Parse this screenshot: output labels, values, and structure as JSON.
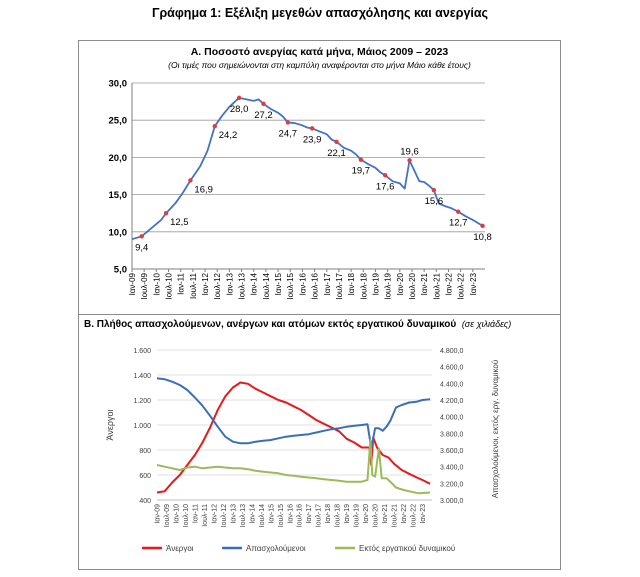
{
  "page_title": "Γράφημα 1: Εξέλιξη μεγεθών απασχόλησης και ανεργίας",
  "chart_data": [
    {
      "type": "line",
      "title": "Α. Ποσοστό ανεργίας κατά μήνα, Μάιος 2009 – 2023",
      "subtitle": "(Οι τιμές που σημειώνονται στη καμπύλη αναφέρονται στο μήνα Μάιο κάθε έτους)",
      "ylim": [
        5,
        30
      ],
      "y_ticks": [
        "5,0",
        "10,0",
        "15,0",
        "20,0",
        "25,0",
        "30,0"
      ],
      "x_ticks": [
        "Ιαν-09",
        "Ιουλ-09",
        "Ιαν-10",
        "Ιουλ-10",
        "Ιαν-11",
        "Ιουλ-11",
        "Ιαν-12",
        "Ιουλ-12",
        "Ιαν-13",
        "Ιουλ-13",
        "Ιαν-14",
        "Ιουλ-14",
        "Ιαν-15",
        "Ιουλ-15",
        "Ιαν-16",
        "Ιουλ-16",
        "Ιαν-17",
        "Ιουλ-17",
        "Ιαν-18",
        "Ιουλ-18",
        "Ιαν-19",
        "Ιουλ-19",
        "Ιαν-20",
        "Ιουλ-20",
        "Ιαν-21",
        "Ιουλ-21",
        "Ιαν-22",
        "Ιουλ-22",
        "Ιαν-23"
      ],
      "grid": true,
      "series": [
        {
          "color": "#4472c4",
          "points": [
            [
              2009.0,
              9.0
            ],
            [
              2009.4,
              9.4
            ],
            [
              2009.8,
              10.5
            ],
            [
              2010.2,
              11.6
            ],
            [
              2010.4,
              12.5
            ],
            [
              2010.8,
              13.9
            ],
            [
              2011.1,
              15.3
            ],
            [
              2011.4,
              16.9
            ],
            [
              2011.8,
              18.8
            ],
            [
              2012.1,
              20.9
            ],
            [
              2012.4,
              24.2
            ],
            [
              2012.7,
              25.6
            ],
            [
              2013.0,
              26.8
            ],
            [
              2013.2,
              27.4
            ],
            [
              2013.4,
              28.0
            ],
            [
              2013.7,
              27.8
            ],
            [
              2014.0,
              27.6
            ],
            [
              2014.2,
              27.8
            ],
            [
              2014.4,
              27.2
            ],
            [
              2014.7,
              26.5
            ],
            [
              2015.0,
              26.0
            ],
            [
              2015.2,
              25.5
            ],
            [
              2015.4,
              24.7
            ],
            [
              2015.7,
              24.6
            ],
            [
              2016.0,
              24.3
            ],
            [
              2016.2,
              24.0
            ],
            [
              2016.4,
              23.9
            ],
            [
              2016.7,
              23.5
            ],
            [
              2017.0,
              23.1
            ],
            [
              2017.2,
              22.4
            ],
            [
              2017.4,
              22.1
            ],
            [
              2017.7,
              21.3
            ],
            [
              2018.0,
              20.9
            ],
            [
              2018.2,
              20.4
            ],
            [
              2018.4,
              19.7
            ],
            [
              2018.7,
              19.1
            ],
            [
              2019.0,
              18.6
            ],
            [
              2019.2,
              18.0
            ],
            [
              2019.4,
              17.6
            ],
            [
              2019.7,
              16.8
            ],
            [
              2020.0,
              16.5
            ],
            [
              2020.2,
              15.8
            ],
            [
              2020.4,
              19.6
            ],
            [
              2020.6,
              18.2
            ],
            [
              2020.8,
              16.8
            ],
            [
              2021.0,
              16.7
            ],
            [
              2021.2,
              16.2
            ],
            [
              2021.4,
              15.6
            ],
            [
              2021.6,
              13.8
            ],
            [
              2021.9,
              13.4
            ],
            [
              2022.1,
              13.2
            ],
            [
              2022.4,
              12.7
            ],
            [
              2022.7,
              12.1
            ],
            [
              2023.0,
              11.6
            ],
            [
              2023.2,
              11.2
            ],
            [
              2023.4,
              10.8
            ]
          ],
          "labels": [
            {
              "x": 2009.4,
              "value": "9,4",
              "pos": "below"
            },
            {
              "x": 2010.4,
              "value": "12,5",
              "pos": "below-right"
            },
            {
              "x": 2011.4,
              "value": "16,9",
              "pos": "below-right"
            },
            {
              "x": 2012.4,
              "value": "24,2",
              "pos": "below-right"
            },
            {
              "x": 2013.4,
              "value": "28,0",
              "pos": "below"
            },
            {
              "x": 2014.4,
              "value": "27,2",
              "pos": "below"
            },
            {
              "x": 2015.4,
              "value": "24,7",
              "pos": "below"
            },
            {
              "x": 2016.4,
              "value": "23,9",
              "pos": "below"
            },
            {
              "x": 2017.4,
              "value": "22,1",
              "pos": "below"
            },
            {
              "x": 2018.4,
              "value": "19,7",
              "pos": "below"
            },
            {
              "x": 2019.4,
              "value": "17,6",
              "pos": "below"
            },
            {
              "x": 2020.4,
              "value": "19,6",
              "pos": "above"
            },
            {
              "x": 2021.4,
              "value": "15,6",
              "pos": "below"
            },
            {
              "x": 2022.4,
              "value": "12,7",
              "pos": "below"
            },
            {
              "x": 2023.4,
              "value": "10,8",
              "pos": "below"
            }
          ],
          "marker_color": "#e03c3c"
        }
      ]
    },
    {
      "type": "line",
      "title": "Β. Πλήθος απασχολούμενων, ανέργων και ατόμων εκτός εργατικού δυναμικού",
      "title_note": "(σε χιλιάδες)",
      "ylabel_left": "Άνεργοι",
      "ylabel_right": "Απασχολούμενοι, εκτός εργ. δυναμικού",
      "ylim_left": [
        400,
        1600
      ],
      "ylim_right": [
        3000,
        4800
      ],
      "y_ticks_left": [
        "400",
        "600",
        "800",
        "1.000",
        "1.200",
        "1.400",
        "1.600"
      ],
      "y_ticks_right": [
        "3.000,0",
        "3.200,0",
        "3.400,0",
        "3.600,0",
        "3.800,0",
        "4.000,0",
        "4.200,0",
        "4.400,0",
        "4.600,0",
        "4.800,0"
      ],
      "x_ticks": [
        "Ιαν-09",
        "Ιουλ-09",
        "Ιαν-10",
        "Ιουλ-10",
        "Ιαν-11",
        "Ιουλ-11",
        "Ιαν-12",
        "Ιουλ-12",
        "Ιαν-13",
        "Ιουλ-13",
        "Ιαν-14",
        "Ιουλ-14",
        "Ιαν-15",
        "Ιουλ-15",
        "Ιαν-16",
        "Ιουλ-16",
        "Ιαν-17",
        "Ιουλ-17",
        "Ιαν-18",
        "Ιουλ-18",
        "Ιαν-19",
        "Ιουλ-19",
        "Ιαν-20",
        "Ιουλ-20",
        "Ιαν-21",
        "Ιουλ-21",
        "Ιαν-22",
        "Ιουλ-22",
        "Ιαν-23"
      ],
      "grid": true,
      "legend_position": "bottom",
      "series": [
        {
          "name": "Άνεργοι",
          "axis": "left",
          "color": "#e8191b",
          "points": [
            [
              2009.0,
              460
            ],
            [
              2009.4,
              470
            ],
            [
              2009.8,
              540
            ],
            [
              2010.2,
              600
            ],
            [
              2010.6,
              680
            ],
            [
              2011.0,
              760
            ],
            [
              2011.4,
              860
            ],
            [
              2011.8,
              980
            ],
            [
              2012.2,
              1120
            ],
            [
              2012.6,
              1230
            ],
            [
              2013.0,
              1300
            ],
            [
              2013.4,
              1340
            ],
            [
              2013.8,
              1330
            ],
            [
              2014.2,
              1290
            ],
            [
              2014.6,
              1260
            ],
            [
              2015.0,
              1230
            ],
            [
              2015.4,
              1200
            ],
            [
              2015.8,
              1180
            ],
            [
              2016.2,
              1150
            ],
            [
              2016.6,
              1120
            ],
            [
              2017.0,
              1080
            ],
            [
              2017.4,
              1040
            ],
            [
              2017.8,
              1010
            ],
            [
              2018.2,
              980
            ],
            [
              2018.6,
              950
            ],
            [
              2019.0,
              890
            ],
            [
              2019.4,
              860
            ],
            [
              2019.8,
              820
            ],
            [
              2020.2,
              820
            ],
            [
              2020.3,
              680
            ],
            [
              2020.4,
              900
            ],
            [
              2020.6,
              820
            ],
            [
              2020.9,
              760
            ],
            [
              2021.2,
              740
            ],
            [
              2021.5,
              690
            ],
            [
              2021.9,
              640
            ],
            [
              2022.3,
              610
            ],
            [
              2022.7,
              580
            ],
            [
              2023.0,
              560
            ],
            [
              2023.4,
              530
            ]
          ]
        },
        {
          "name": "Απασχολούμενοι",
          "axis": "right",
          "color": "#3a6fb7",
          "points": [
            [
              2009.0,
              4460
            ],
            [
              2009.4,
              4450
            ],
            [
              2009.8,
              4420
            ],
            [
              2010.2,
              4380
            ],
            [
              2010.6,
              4320
            ],
            [
              2011.0,
              4230
            ],
            [
              2011.4,
              4130
            ],
            [
              2011.8,
              4010
            ],
            [
              2012.2,
              3880
            ],
            [
              2012.6,
              3760
            ],
            [
              2013.0,
              3700
            ],
            [
              2013.4,
              3680
            ],
            [
              2013.8,
              3680
            ],
            [
              2014.2,
              3700
            ],
            [
              2014.6,
              3710
            ],
            [
              2015.0,
              3720
            ],
            [
              2015.4,
              3740
            ],
            [
              2015.8,
              3760
            ],
            [
              2016.2,
              3770
            ],
            [
              2016.6,
              3780
            ],
            [
              2017.0,
              3790
            ],
            [
              2017.4,
              3810
            ],
            [
              2017.8,
              3830
            ],
            [
              2018.2,
              3850
            ],
            [
              2018.6,
              3860
            ],
            [
              2019.0,
              3880
            ],
            [
              2019.4,
              3890
            ],
            [
              2019.8,
              3900
            ],
            [
              2020.1,
              3910
            ],
            [
              2020.3,
              3620
            ],
            [
              2020.5,
              3860
            ],
            [
              2020.7,
              3860
            ],
            [
              2020.9,
              3830
            ],
            [
              2021.1,
              3880
            ],
            [
              2021.3,
              3950
            ],
            [
              2021.6,
              4110
            ],
            [
              2021.9,
              4140
            ],
            [
              2022.3,
              4170
            ],
            [
              2022.7,
              4180
            ],
            [
              2023.0,
              4200
            ],
            [
              2023.4,
              4210
            ]
          ]
        },
        {
          "name": "Εκτός εργατικού δυναμικού",
          "axis": "right",
          "color": "#9bbb59",
          "points": [
            [
              2009.0,
              3420
            ],
            [
              2009.4,
              3400
            ],
            [
              2009.8,
              3380
            ],
            [
              2010.2,
              3360
            ],
            [
              2010.6,
              3390
            ],
            [
              2011.0,
              3400
            ],
            [
              2011.4,
              3380
            ],
            [
              2011.8,
              3390
            ],
            [
              2012.2,
              3400
            ],
            [
              2012.6,
              3390
            ],
            [
              2013.0,
              3380
            ],
            [
              2013.4,
              3380
            ],
            [
              2013.8,
              3370
            ],
            [
              2014.2,
              3350
            ],
            [
              2014.6,
              3340
            ],
            [
              2015.0,
              3330
            ],
            [
              2015.4,
              3320
            ],
            [
              2015.8,
              3300
            ],
            [
              2016.2,
              3290
            ],
            [
              2016.6,
              3280
            ],
            [
              2017.0,
              3270
            ],
            [
              2017.4,
              3260
            ],
            [
              2017.8,
              3250
            ],
            [
              2018.2,
              3240
            ],
            [
              2018.6,
              3230
            ],
            [
              2019.0,
              3220
            ],
            [
              2019.4,
              3220
            ],
            [
              2019.8,
              3220
            ],
            [
              2020.1,
              3240
            ],
            [
              2020.25,
              3720
            ],
            [
              2020.35,
              3300
            ],
            [
              2020.5,
              3280
            ],
            [
              2020.7,
              3620
            ],
            [
              2020.85,
              3260
            ],
            [
              2021.1,
              3260
            ],
            [
              2021.3,
              3220
            ],
            [
              2021.6,
              3150
            ],
            [
              2022.0,
              3120
            ],
            [
              2022.4,
              3100
            ],
            [
              2022.8,
              3080
            ],
            [
              2023.4,
              3090
            ]
          ]
        }
      ]
    }
  ]
}
